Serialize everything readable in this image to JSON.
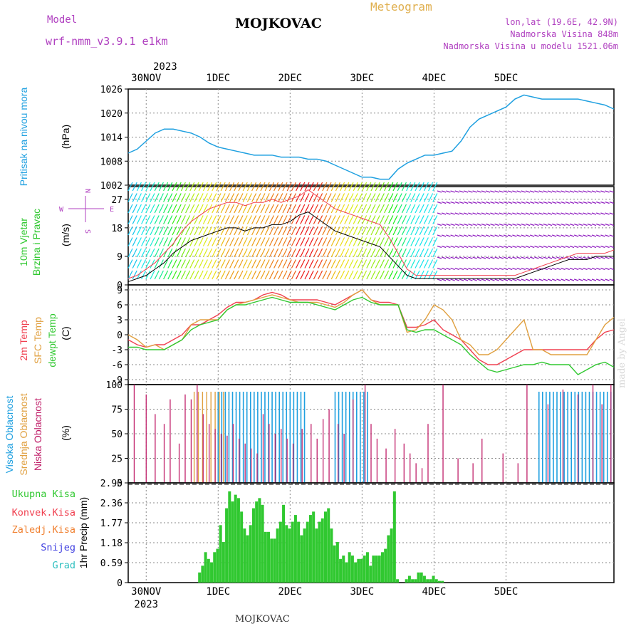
{
  "header": {
    "model_label": "Model",
    "model_name": "wrf-nmm_v3.9.1 e1km",
    "station": "MOJKOVAC",
    "product": "Meteogram",
    "lonlat": "lon,lat (19.6E, 42.9N)",
    "elevation": "Nadmorska Visina 848m",
    "model_elevation": "Nadmorska Visina u modelu 1521.06m"
  },
  "footer": {
    "station": "MOJKOVAC",
    "credit": "made by Angel"
  },
  "time_axis": {
    "year": "2023",
    "day_labels": [
      "30NOV",
      "1DEC",
      "2DEC",
      "3DEC",
      "4DEC",
      "5DEC"
    ]
  },
  "colors": {
    "pressure": "#1fa0e0",
    "temp2m": "#f04050",
    "sfc": "#e0a040",
    "dewpt": "#30c830",
    "high_cloud": "#1fa0e0",
    "mid_cloud": "#e0a040",
    "low_cloud": "#c0206a",
    "precip_total": "#30c830",
    "precip_conv": "#f04050",
    "precip_frozen": "#f08030",
    "snow": "#4040e0",
    "hail": "#30c0c0",
    "panel_label_purple": "#b040c0"
  },
  "chart_data": [
    {
      "type": "line",
      "panel": "pressure",
      "label_left": "Pritisak na nivou mora",
      "ylabel": "(hPa)",
      "ylim": [
        1002,
        1026
      ],
      "yticks": [
        "1026",
        "1020",
        "1014",
        "1008",
        "1002"
      ],
      "grid": true,
      "x_hours": [
        0,
        3,
        6,
        9,
        12,
        15,
        18,
        21,
        24,
        27,
        30,
        33,
        36,
        39,
        42,
        45,
        48,
        51,
        54,
        57,
        60,
        63,
        66,
        69,
        72,
        75,
        78,
        81,
        84,
        87,
        90,
        93,
        96,
        99,
        102,
        105,
        108,
        111,
        114,
        117,
        120,
        123,
        126,
        129,
        132,
        135,
        138,
        141,
        144,
        147,
        150,
        153,
        156,
        159,
        162
      ],
      "values": [
        1010,
        1011,
        1013,
        1015,
        1016,
        1016,
        1015.5,
        1015,
        1014,
        1012.5,
        1011.5,
        1011,
        1010.5,
        1010,
        1009.5,
        1009.5,
        1009.5,
        1009,
        1009,
        1009,
        1008.5,
        1008.5,
        1008,
        1007,
        1006,
        1005,
        1004,
        1004,
        1003.5,
        1003.5,
        1006,
        1007.5,
        1008.5,
        1009.5,
        1009.5,
        1010,
        1010.5,
        1013,
        1016.5,
        1018.5,
        1019.5,
        1020.5,
        1021.5,
        1023.5,
        1024.5,
        1024,
        1023.5,
        1023.5,
        1023.5,
        1023.5,
        1023.5,
        1023,
        1022.5,
        1022,
        1021
      ]
    },
    {
      "type": "line",
      "panel": "wind",
      "label_left": "10m Vjetar",
      "label_left2": "Brzina i Pravac",
      "ylabel": "(m/s)",
      "ylim": [
        0,
        31
      ],
      "yticks": [
        "27",
        "18",
        "9",
        "0"
      ],
      "compass": [
        "N",
        "E",
        "S",
        "W"
      ],
      "series": [
        {
          "name": "speed",
          "values": [
            1,
            2,
            3,
            5,
            7,
            10,
            12,
            14,
            15,
            16,
            17,
            18,
            18,
            17,
            18,
            18,
            19,
            19,
            20,
            22,
            23,
            21,
            19,
            17,
            16,
            15,
            14,
            13,
            12,
            9,
            6,
            3,
            2,
            2,
            2,
            2,
            2,
            2,
            2,
            2,
            2,
            2,
            2,
            2,
            3,
            4,
            5,
            6,
            7,
            8,
            8,
            8,
            9,
            9,
            9
          ]
        },
        {
          "name": "gust",
          "values": [
            2,
            3,
            5,
            7,
            10,
            13,
            17,
            20,
            22,
            24,
            25,
            26,
            26,
            25,
            26,
            26,
            27,
            26,
            27,
            28,
            30,
            28,
            26,
            24,
            23,
            22,
            21,
            20,
            19,
            15,
            10,
            5,
            3,
            3,
            3,
            3,
            3,
            3,
            3,
            3,
            3,
            3,
            3,
            3,
            4,
            5,
            6,
            7,
            8,
            9,
            10,
            10,
            10,
            10,
            11
          ]
        }
      ]
    },
    {
      "type": "line",
      "panel": "temperature",
      "labels_left": [
        "2m Temp",
        "SFC Temp",
        "dewpt Temp"
      ],
      "ylabel": "(C)",
      "ylim": [
        -10,
        10
      ],
      "yticks": [
        "9",
        "6",
        "3",
        "0",
        "-3",
        "-6",
        "-9"
      ],
      "series": [
        {
          "name": "2m Temp",
          "values": [
            -1,
            -2,
            -2.5,
            -2,
            -2,
            -1,
            0,
            2,
            2,
            3,
            4,
            5.5,
            6.5,
            6.5,
            7,
            8,
            8.5,
            8,
            7,
            7,
            7,
            7,
            6.5,
            6,
            7,
            8,
            9,
            7,
            6.5,
            6.5,
            6,
            1.5,
            1.5,
            2,
            3,
            1,
            0,
            -1,
            -3,
            -5,
            -6,
            -6,
            -5,
            -4,
            -3,
            -3,
            -3,
            -3,
            -3,
            -3,
            -3,
            -3,
            -1,
            0.5,
            1
          ]
        },
        {
          "name": "SFC Temp",
          "values": [
            0,
            -1,
            -2.5,
            -2,
            -3,
            -2,
            -1,
            2,
            3,
            3,
            3,
            5,
            6,
            6.5,
            7,
            7.5,
            8,
            7.5,
            7,
            6.5,
            6.5,
            6.5,
            6,
            5.5,
            6.5,
            8,
            9,
            7,
            6,
            6,
            6,
            0.5,
            1,
            3,
            6,
            5,
            3,
            -1,
            -2,
            -4,
            -4,
            -3,
            -1,
            1,
            3,
            -3,
            -3,
            -4,
            -4,
            -4,
            -4,
            -4,
            -1,
            2,
            3.5
          ]
        },
        {
          "name": "dewpt Temp",
          "values": [
            -2.5,
            -2.5,
            -3,
            -3,
            -3,
            -2,
            -1,
            1,
            2,
            2.5,
            3,
            5,
            6,
            6,
            6.5,
            7,
            7.5,
            7,
            6.5,
            6.5,
            6.5,
            6,
            5.5,
            5,
            6,
            7,
            7.5,
            6.5,
            6,
            6,
            6,
            1,
            0.5,
            1,
            1,
            0,
            -1,
            -2,
            -4,
            -5.5,
            -7,
            -7.5,
            -7,
            -6.5,
            -6,
            -6,
            -5.5,
            -6,
            -6,
            -6,
            -8,
            -7,
            -6,
            -5.5,
            -6.5
          ]
        }
      ]
    },
    {
      "type": "bar",
      "panel": "cloud",
      "labels_left": [
        "Visoka Oblacnost",
        "Srednja Oblacnost",
        "Niska Oblacnost"
      ],
      "ylabel": "(%)",
      "ylim": [
        0,
        100
      ],
      "yticks": [
        "100",
        "75",
        "50",
        "25",
        "0"
      ]
    },
    {
      "type": "bar",
      "panel": "precip",
      "legend": [
        "Ukupna Kisa",
        "Konvek.Kisa",
        "Zaledj.Kisa",
        "Snijeg",
        "Grad"
      ],
      "ylabel": "1hr Precip (mm)",
      "ylim": [
        0,
        2.95
      ],
      "yticks": [
        "2.95",
        "2.36",
        "1.77",
        "1.18",
        "0.59",
        "0"
      ],
      "x_hours": [
        20,
        21,
        22,
        23,
        24,
        25,
        26,
        27,
        28,
        29,
        30,
        31,
        32,
        33,
        34,
        35,
        36,
        37,
        38,
        39,
        40,
        41,
        42,
        43,
        44,
        45,
        46,
        47,
        48,
        49,
        50,
        51,
        52,
        53,
        54,
        55,
        56,
        57,
        58,
        59,
        60,
        61,
        62,
        63,
        64,
        65,
        66,
        67,
        68,
        69,
        70,
        71,
        72,
        73,
        74,
        75,
        76,
        77,
        78,
        79,
        80,
        81,
        82,
        83,
        84,
        85,
        86,
        87,
        88,
        89,
        90,
        91,
        92,
        93,
        94,
        95,
        96,
        97,
        98,
        99,
        100,
        101
      ],
      "values": [
        0.3,
        0.5,
        0.9,
        0.7,
        0.6,
        0.9,
        1.0,
        1.7,
        1.2,
        2.2,
        2.7,
        2.4,
        2.6,
        2.5,
        2.1,
        1.6,
        1.4,
        1.7,
        2.2,
        2.4,
        2.5,
        2.3,
        1.5,
        1.5,
        1.3,
        1.3,
        1.6,
        1.8,
        2.3,
        1.7,
        1.6,
        1.8,
        2.0,
        1.8,
        1.4,
        1.6,
        1.8,
        2.0,
        2.1,
        1.6,
        1.8,
        1.9,
        2.1,
        2.2,
        1.6,
        1.1,
        1.2,
        0.7,
        0.8,
        0.6,
        0.9,
        0.8,
        0.6,
        0.7,
        0.7,
        0.8,
        0.9,
        0.5,
        0.8,
        0.8,
        0.8,
        0.9,
        1.0,
        1.4,
        1.6,
        2.7,
        0.1,
        0.0,
        0.0,
        0.1,
        0.2,
        0.1,
        0.1,
        0.3,
        0.3,
        0.2,
        0.1,
        0.1,
        0.2,
        0.1,
        0.05,
        0.05
      ]
    }
  ]
}
